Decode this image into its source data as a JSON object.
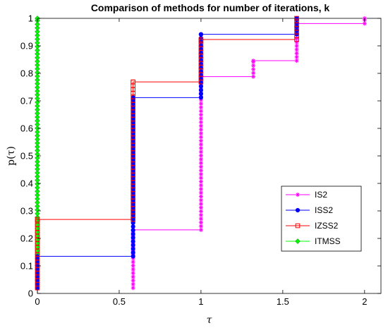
{
  "chart_data": {
    "type": "line",
    "title": "Comparison of methods for number of iterations, k",
    "xlabel": "τ",
    "ylabel": "p(τ)",
    "xlim": [
      0,
      2.1
    ],
    "ylim": [
      0,
      1
    ],
    "x_ticks": [
      0,
      0.5,
      1,
      1.5,
      2
    ],
    "x_tick_labels": [
      "0",
      "0.5",
      "1",
      "1.5",
      "2"
    ],
    "y_ticks": [
      0,
      0.1,
      0.2,
      0.3,
      0.4,
      0.5,
      0.6,
      0.7,
      0.8,
      0.9,
      1
    ],
    "y_tick_labels": [
      "0",
      "0.1",
      "0.2",
      "0.3",
      "0.4",
      "0.5",
      "0.6",
      "0.7",
      "0.8",
      "0.9",
      "1"
    ],
    "grid": false,
    "legend_position": "bottom-right",
    "step_plot": true,
    "series": [
      {
        "name": "IS2",
        "color": "#ff00ff",
        "marker": "asterisk",
        "x": [
          0.585,
          1.0,
          1.32,
          1.585,
          2.0
        ],
        "y": [
          0.231,
          0.788,
          0.846,
          0.981,
          1.0
        ]
      },
      {
        "name": "ISS2",
        "color": "#0000ff",
        "marker": "dot",
        "x": [
          0,
          0.585,
          1.0,
          1.585
        ],
        "y": [
          0.135,
          0.712,
          0.942,
          1.0
        ]
      },
      {
        "name": "IZSS2",
        "color": "#ff0000",
        "marker": "square",
        "x": [
          0,
          0.585,
          1.0,
          1.585
        ],
        "y": [
          0.269,
          0.769,
          0.923,
          1.0
        ]
      },
      {
        "name": "ITMSS",
        "color": "#00ff00",
        "marker": "diamond",
        "x": [
          0
        ],
        "y": [
          1.0
        ]
      }
    ]
  }
}
